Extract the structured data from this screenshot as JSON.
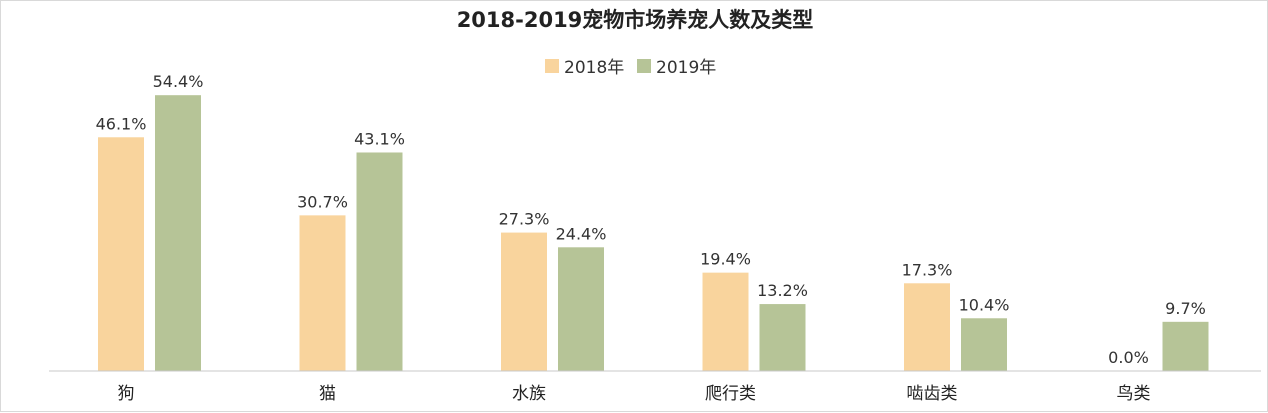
{
  "chart_data": {
    "type": "bar",
    "title": "2018-2019宠物市场养宠人数及类型",
    "categories": [
      "狗",
      "猫",
      "水族",
      "爬行类",
      "啮齿类",
      "鸟类"
    ],
    "series": [
      {
        "name": "2018年",
        "color": "#f9d49d",
        "values": [
          46.1,
          30.7,
          27.3,
          19.4,
          17.3,
          0.0
        ],
        "labels": [
          "46.1%",
          "30.7%",
          "27.3%",
          "19.4%",
          "17.3%",
          "0.0%"
        ]
      },
      {
        "name": "2019年",
        "color": "#b6c497",
        "values": [
          54.4,
          43.1,
          24.4,
          13.2,
          10.4,
          9.7
        ],
        "labels": [
          "54.4%",
          "43.1%",
          "24.4%",
          "13.2%",
          "10.4%",
          "9.7%"
        ]
      }
    ],
    "ylim": [
      0,
      60
    ],
    "xlabel": "",
    "ylabel": "",
    "grid": false,
    "legend_position": "top-center"
  }
}
